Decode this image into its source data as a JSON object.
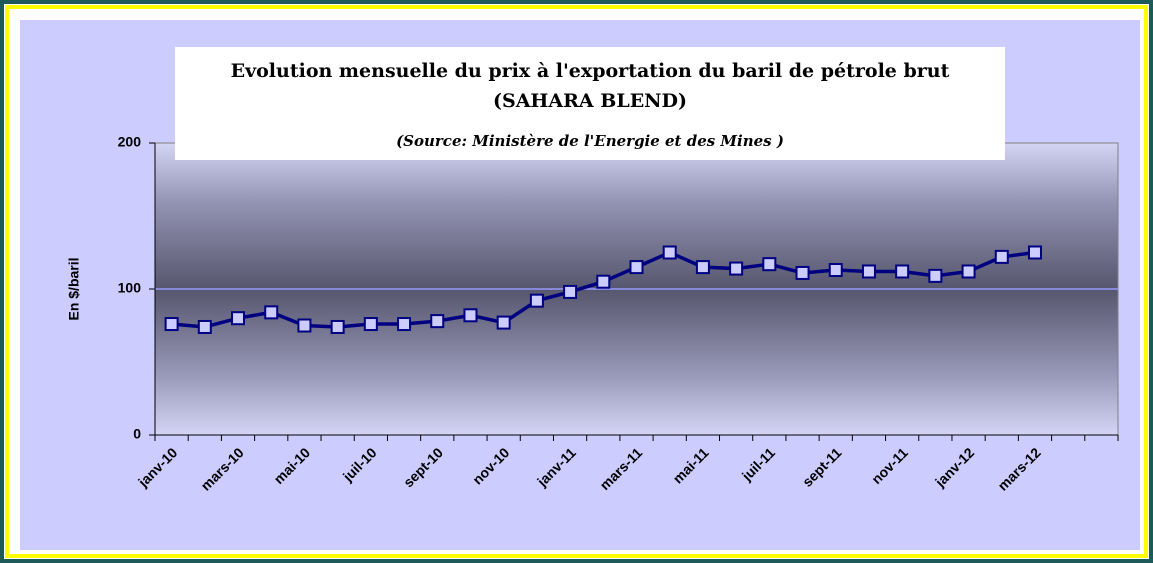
{
  "chart_data": {
    "type": "line",
    "title": "Evolution mensuelle du prix à l'exportation du baril de pétrole brut",
    "subtitle": "(SAHARA BLEND)",
    "source": "(Source: Ministère de l'Energie et des Mines )",
    "y_label": "En $/baril",
    "categories": [
      "janv-10",
      null,
      "mars-10",
      null,
      "mai-10",
      null,
      "juil-10",
      null,
      "sept-10",
      null,
      "nov-10",
      null,
      "janv-11",
      null,
      "mars-11",
      null,
      "mai-11",
      null,
      "juil-11",
      null,
      "sept-11",
      null,
      "nov-11",
      null,
      "janv-12",
      null,
      "mars-12",
      null,
      null
    ],
    "series": [
      {
        "name": "Sahara Blend",
        "color": "#000080",
        "values": [
          76,
          74,
          80,
          84,
          75,
          74,
          76,
          76,
          78,
          82,
          77,
          92,
          98,
          105,
          115,
          125,
          115,
          114,
          117,
          111,
          113,
          112,
          112,
          109,
          112,
          122,
          125,
          null,
          null
        ]
      }
    ],
    "ylim": [
      0,
      200
    ],
    "yticks": [
      0,
      100,
      200
    ],
    "grid": true
  }
}
